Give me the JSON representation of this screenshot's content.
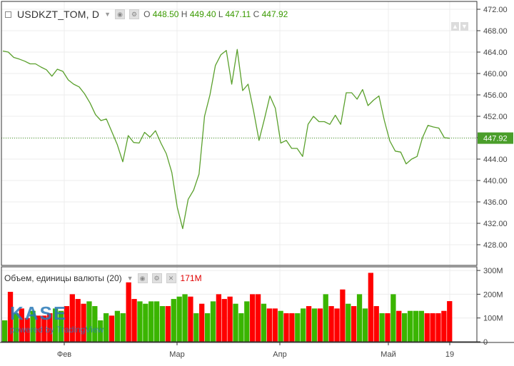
{
  "header": {
    "symbol": "USDKZT_TOM, D",
    "open_label": "O",
    "open": "448.50",
    "high_label": "H",
    "high": "449.40",
    "low_label": "L",
    "low": "447.11",
    "close_label": "C",
    "close": "447.92"
  },
  "volume_header": {
    "title": "Объем, единицы валюты (20)",
    "value": "171M"
  },
  "watermark": {
    "logo": "KASE",
    "powered": "powered by TradingView"
  },
  "colors": {
    "line": "#5aa02c",
    "up": "#3ab500",
    "down": "#ff0000",
    "last_price": "#4a9e2a"
  },
  "chart_data": [
    {
      "type": "line",
      "title": "",
      "x_ticks": [
        "Фев",
        "Мар",
        "Апр",
        "Май",
        "19"
      ],
      "y_ticks": [
        "428.00",
        "432.00",
        "436.00",
        "440.00",
        "444.00",
        "448.00",
        "452.00",
        "456.00",
        "460.00",
        "464.00",
        "468.00",
        "472.00"
      ],
      "ylim": [
        424,
        473
      ],
      "last_value": "447.92",
      "values": [
        464.2,
        464,
        463,
        462.7,
        462.3,
        461.8,
        461.8,
        461.2,
        460.7,
        459.5,
        460.8,
        460.4,
        458.8,
        458,
        457.5,
        456.2,
        454.5,
        452.3,
        451.2,
        451.5,
        449.1,
        446.7,
        443.5,
        448.4,
        447.1,
        447,
        449,
        448.1,
        449.3,
        447,
        445,
        441.5,
        435,
        431,
        436.5,
        438.2,
        441.2,
        452,
        456,
        461.5,
        463.5,
        464.3,
        458,
        464.5,
        456.8,
        458,
        453,
        447.5,
        451.5,
        455.8,
        453.5,
        447,
        447.5,
        446,
        446,
        444.5,
        450.5,
        452,
        451,
        451,
        450.5,
        452.2,
        450.5,
        456.4,
        456.4,
        455.2,
        457,
        454,
        455,
        455.8,
        451.2,
        447.4,
        445.5,
        445.3,
        443.1,
        444,
        444.5,
        448,
        450.3,
        450,
        449.8,
        448,
        447.9
      ]
    },
    {
      "type": "bar",
      "title": "Объем, единицы валюты (20)",
      "y_ticks": [
        "0",
        "100M",
        "200M",
        "300M"
      ],
      "ylim": [
        0,
        300
      ],
      "values": [
        90,
        210,
        120,
        140,
        100,
        130,
        110,
        110,
        120,
        140,
        130,
        150,
        200,
        180,
        160,
        170,
        150,
        90,
        120,
        110,
        130,
        120,
        250,
        180,
        170,
        160,
        170,
        170,
        150,
        150,
        180,
        190,
        200,
        190,
        120,
        160,
        120,
        170,
        200,
        180,
        190,
        160,
        120,
        170,
        200,
        200,
        160,
        140,
        140,
        130,
        120,
        120,
        120,
        140,
        150,
        140,
        140,
        200,
        150,
        140,
        220,
        160,
        150,
        200,
        140,
        290,
        150,
        120,
        120,
        200,
        130,
        120,
        130,
        130,
        130,
        120,
        120,
        120,
        130,
        171
      ],
      "colors": [
        "g",
        "r",
        "g",
        "r",
        "r",
        "g",
        "r",
        "r",
        "r",
        "g",
        "g",
        "r",
        "r",
        "r",
        "r",
        "g",
        "g",
        "g",
        "g",
        "r",
        "g",
        "g",
        "r",
        "r",
        "g",
        "g",
        "g",
        "g",
        "g",
        "r",
        "g",
        "g",
        "g",
        "r",
        "g",
        "r",
        "g",
        "g",
        "r",
        "r",
        "r",
        "g",
        "g",
        "g",
        "r",
        "r",
        "g",
        "r",
        "r",
        "g",
        "r",
        "r",
        "g",
        "g",
        "r",
        "g",
        "r",
        "g",
        "r",
        "r",
        "r",
        "g",
        "r",
        "g",
        "g",
        "r",
        "r",
        "g",
        "r",
        "g",
        "r",
        "g",
        "g",
        "g",
        "g",
        "r",
        "r",
        "r",
        "r",
        "r"
      ]
    }
  ]
}
